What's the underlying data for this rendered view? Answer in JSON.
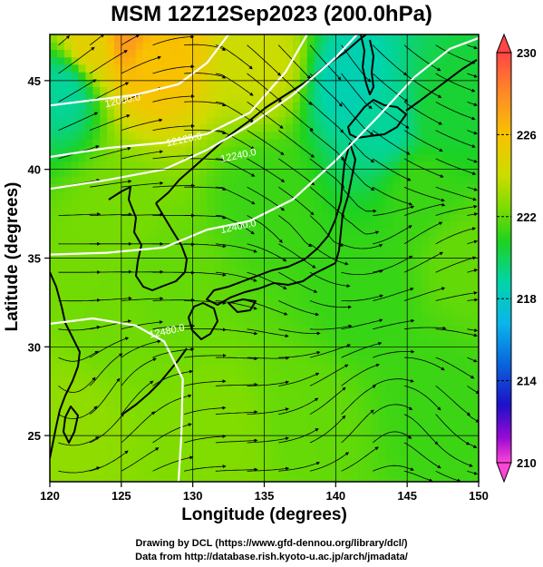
{
  "title": "MSM 12Z12Sep2023 (200.0hPa)",
  "xlabel": "Longitude (degrees)",
  "ylabel": "Latitude  (degrees)",
  "credits": [
    "Drawing by DCL (https://www.gfd-dennou.org/library/dcl/)",
    "Data from http://database.rish.kyoto-u.ac.jp/arch/jmadata/"
  ],
  "chart_data": {
    "type": "heatmap",
    "subtype": "map with temperature shading, geopotential height contours and wind streamlines",
    "xlim": [
      120,
      150
    ],
    "ylim": [
      22.4,
      47.6
    ],
    "xticks": [
      120,
      125,
      130,
      135,
      140,
      145,
      150
    ],
    "yticks": [
      25,
      30,
      35,
      40,
      45
    ],
    "grid": true,
    "colorbar": {
      "min": 210,
      "max": 230,
      "tick_labels": [
        "230",
        "226",
        "222",
        "218",
        "214",
        "210"
      ],
      "colors": [
        "#ff4545",
        "#ff8a26",
        "#f8c200",
        "#ccdc00",
        "#7cdc00",
        "#1ed21e",
        "#00d4a8",
        "#0ab6ea",
        "#0a64dc",
        "#1e10c8",
        "#9a0ad2",
        "#ff45d8"
      ]
    },
    "contours": [
      {
        "label": "12000.0",
        "points": [
          [
            120,
            43.6
          ],
          [
            123,
            43.9
          ],
          [
            126,
            44.2
          ],
          [
            129,
            44.8
          ],
          [
            131,
            46.0
          ],
          [
            132.5,
            47.6
          ]
        ]
      },
      {
        "label": "12120.0",
        "points": [
          [
            120,
            40.7
          ],
          [
            124,
            41.2
          ],
          [
            128,
            41.5
          ],
          [
            131,
            42.0
          ],
          [
            134,
            43.2
          ],
          [
            136.5,
            45.5
          ],
          [
            138,
            47.6
          ]
        ]
      },
      {
        "label": "12240.0",
        "points": [
          [
            120,
            38.9
          ],
          [
            124,
            39.4
          ],
          [
            128,
            40.0
          ],
          [
            131,
            41.1
          ],
          [
            134,
            42.5
          ],
          [
            137,
            44.2
          ],
          [
            140,
            46.3
          ],
          [
            141.5,
            47.6
          ]
        ]
      },
      {
        "label": "12400.0",
        "points": [
          [
            120,
            35.2
          ],
          [
            124,
            35.3
          ],
          [
            128,
            35.6
          ],
          [
            131,
            36.6
          ],
          [
            134,
            37.1
          ],
          [
            137,
            38.3
          ],
          [
            140,
            40.5
          ],
          [
            143,
            43.0
          ],
          [
            145.5,
            45.2
          ],
          [
            148,
            46.8
          ],
          [
            150,
            47.4
          ]
        ]
      },
      {
        "label": "12480.0",
        "points": [
          [
            120,
            31.3
          ],
          [
            123,
            31.6
          ],
          [
            126,
            31.2
          ],
          [
            128,
            30.3
          ],
          [
            129.3,
            28.2
          ],
          [
            129.2,
            25.0
          ],
          [
            129.0,
            22.4
          ]
        ]
      }
    ],
    "contour_labels": [
      {
        "text": "12000.0",
        "lon": 123.9,
        "lat": 43.5
      },
      {
        "text": "12120.0",
        "lon": 128.2,
        "lat": 41.3
      },
      {
        "text": "12240.0",
        "lon": 132.0,
        "lat": 40.4
      },
      {
        "text": "12400.0",
        "lon": 132.0,
        "lat": 36.4
      },
      {
        "text": "12480.0",
        "lon": 127.0,
        "lat": 30.5
      }
    ],
    "color_field": [
      {
        "lon": 125.5,
        "lat": 47.5,
        "value": 227.5
      },
      {
        "lon": 127,
        "lat": 46.5,
        "value": 226
      },
      {
        "lon": 123,
        "lat": 47,
        "value": 225
      },
      {
        "lon": 121,
        "lat": 44.5,
        "value": 219
      },
      {
        "lon": 135,
        "lat": 46,
        "value": 224
      },
      {
        "lon": 141,
        "lat": 45,
        "value": 218.5
      },
      {
        "lon": 143.5,
        "lat": 42.5,
        "value": 219
      },
      {
        "lon": 147.5,
        "lat": 43,
        "value": 220.5
      },
      {
        "lon": 146,
        "lat": 39,
        "value": 221.3
      },
      {
        "lon": 135,
        "lat": 38.5,
        "value": 221.3
      },
      {
        "lon": 125,
        "lat": 37.5,
        "value": 222.3
      },
      {
        "lon": 128,
        "lat": 34,
        "value": 222
      },
      {
        "lon": 142,
        "lat": 33,
        "value": 221.2
      },
      {
        "lon": 147,
        "lat": 27,
        "value": 221.3
      },
      {
        "lon": 138,
        "lat": 26,
        "value": 222
      },
      {
        "lon": 132,
        "lat": 25,
        "value": 222.5
      },
      {
        "lon": 121.5,
        "lat": 26,
        "value": 222.8
      },
      {
        "lon": 124,
        "lat": 31,
        "value": 222.2
      },
      {
        "lon": 149,
        "lat": 35,
        "value": 222
      }
    ]
  }
}
